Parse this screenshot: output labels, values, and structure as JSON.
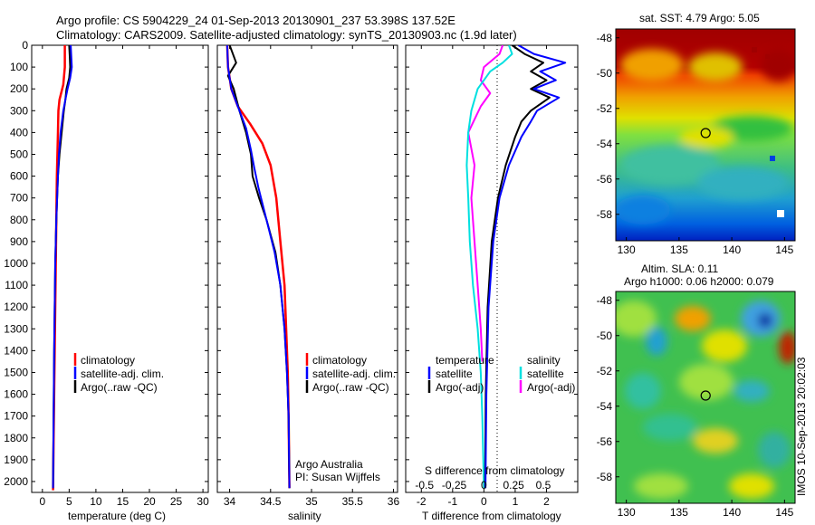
{
  "title_line1": "Argo profile: CS 5904229_24 01-Sep-2013 20130901_237 53.398S 137.52E",
  "title_line2": "Climatology: CARS2009. Satellite-adjusted climatology: synTS_20130903.nc (1.9d later)",
  "side_label": "IMOS 10-Sep-2013 20:02:03",
  "colors": {
    "climatology": "#ff0000",
    "satellite": "#0000ff",
    "argo": "#000000",
    "sat_salinity": "#00e0e0",
    "argo_salinity": "#ff00ff"
  },
  "depth_ticks": [
    "0",
    "100",
    "200",
    "300",
    "400",
    "500",
    "600",
    "700",
    "800",
    "900",
    "1000",
    "1100",
    "1200",
    "1300",
    "1400",
    "1500",
    "1600",
    "1700",
    "1800",
    "1900",
    "2000"
  ],
  "temp_panel": {
    "xlabel": "temperature (deg C)",
    "xticks": [
      "0",
      "5",
      "10",
      "15",
      "20",
      "25",
      "30"
    ],
    "legend": [
      "climatology",
      "satellite-adj. clim.",
      "Argo(..raw -QC)"
    ]
  },
  "sal_panel": {
    "xlabel": "salinity",
    "xticks": [
      "34",
      "34.5",
      "35",
      "35.5",
      "36"
    ],
    "legend": [
      "climatology",
      "satellite-adj. clim.",
      "Argo(..raw -QC)"
    ],
    "note1": "Argo Australia",
    "note2": "PI: Susan Wijffels"
  },
  "diff_panel": {
    "top_xlabel": "S difference from climatology",
    "top_xticks": [
      "-0.5",
      "-0.25",
      "0",
      "0.25",
      "0.5"
    ],
    "xlabel": "T difference from climatology",
    "xticks": [
      "-2",
      "-1",
      "0",
      "1",
      "2"
    ],
    "legend_temp_title": "temperature",
    "legend_sal_title": "salinity",
    "legend_sat": "satellite",
    "legend_argo": "Argo(-adj)"
  },
  "map_sst": {
    "title": "sat. SST: 4.79  Argo: 5.05",
    "xticks": [
      "130",
      "135",
      "140",
      "145"
    ],
    "yticks": [
      "-48",
      "-50",
      "-52",
      "-54",
      "-56",
      "-58"
    ]
  },
  "map_sla": {
    "title1": "Altim. SLA: 0.11",
    "title2": "Argo h1000: 0.06 h2000: 0.079",
    "xticks": [
      "130",
      "135",
      "140",
      "145"
    ],
    "yticks": [
      "-48",
      "-50",
      "-52",
      "-54",
      "-56",
      "-58"
    ]
  },
  "chart_data": [
    {
      "type": "line",
      "title": "Argo profile: CS 5904229_24 01-Sep-2013 20130901_237 53.398S 137.52E",
      "xlabel": "temperature (deg C)",
      "ylabel": "",
      "xlim": [
        -2,
        31
      ],
      "ylim": [
        2050,
        0
      ],
      "series": [
        {
          "name": "climatology",
          "x": [
            4.2,
            4.2,
            3.9,
            3.2,
            3.0,
            2.9,
            2.7,
            2.6,
            2.5,
            2.4,
            2.3,
            2.2,
            2.1,
            2.0
          ],
          "y": [
            0,
            100,
            180,
            250,
            300,
            400,
            600,
            800,
            1000,
            1200,
            1400,
            1600,
            1800,
            2040
          ]
        },
        {
          "name": "satellite-adj. clim.",
          "x": [
            5.3,
            5.4,
            5.5,
            5.2,
            4.7,
            4.3,
            3.9,
            3.4,
            3.1,
            2.9,
            2.6,
            2.4,
            2.3,
            2.2,
            2.1,
            2.0
          ],
          "y": [
            0,
            50,
            100,
            150,
            200,
            250,
            300,
            400,
            500,
            600,
            800,
            1000,
            1200,
            1400,
            1700,
            2030
          ]
        },
        {
          "name": "Argo(..raw -QC)",
          "x": [
            5.0,
            5.1,
            5.2,
            5.0,
            4.5,
            4.3,
            4.0,
            3.6,
            3.2,
            2.9,
            2.6,
            2.4,
            2.3,
            2.2,
            2.1,
            2.0
          ],
          "y": [
            0,
            50,
            100,
            150,
            200,
            250,
            300,
            400,
            500,
            600,
            800,
            1000,
            1200,
            1400,
            1700,
            2030
          ]
        }
      ]
    },
    {
      "type": "line",
      "xlabel": "salinity",
      "xlim": [
        33.85,
        36.05
      ],
      "ylim": [
        2050,
        0
      ],
      "series": [
        {
          "name": "climatology",
          "x": [
            33.97,
            33.98,
            34.02,
            34.1,
            34.25,
            34.4,
            34.5,
            34.57,
            34.62,
            34.67,
            34.69,
            34.71,
            34.72,
            34.73
          ],
          "y": [
            0,
            100,
            200,
            280,
            360,
            450,
            550,
            700,
            900,
            1100,
            1300,
            1500,
            1700,
            2030
          ]
        },
        {
          "name": "satellite-adj. clim.",
          "x": [
            33.97,
            33.98,
            34.02,
            34.1,
            34.2,
            34.26,
            34.3,
            34.35,
            34.45,
            34.55,
            34.62,
            34.67,
            34.7,
            34.72,
            34.73
          ],
          "y": [
            0,
            100,
            200,
            280,
            380,
            480,
            560,
            650,
            800,
            950,
            1100,
            1300,
            1500,
            1700,
            2030
          ]
        },
        {
          "name": "Argo(..raw -QC)",
          "x": [
            34.0,
            34.08,
            33.98,
            34.05,
            34.12,
            34.2,
            34.26,
            34.28,
            34.36,
            34.45,
            34.56,
            34.62,
            34.67,
            34.7,
            34.72,
            34.73
          ],
          "y": [
            0,
            80,
            140,
            200,
            300,
            400,
            500,
            600,
            700,
            800,
            950,
            1100,
            1300,
            1500,
            1700,
            2030
          ]
        }
      ]
    },
    {
      "type": "line",
      "xlabel": "T difference from climatology",
      "xlim": [
        -2.5,
        3.0
      ],
      "ylim": [
        2050,
        0
      ],
      "series": [
        {
          "name": "temperature satellite",
          "x": [
            1.1,
            1.6,
            2.6,
            1.8,
            2.3,
            1.6,
            2.4,
            1.7,
            1.5,
            1.2,
            0.8,
            0.5,
            0.3,
            0.15,
            0.08,
            0.05
          ],
          "y": [
            0,
            40,
            80,
            120,
            160,
            200,
            240,
            300,
            350,
            420,
            550,
            700,
            900,
            1200,
            1600,
            2030
          ]
        },
        {
          "name": "temperature Argo(-adj)",
          "x": [
            0.9,
            1.3,
            1.9,
            1.5,
            2.0,
            1.5,
            2.1,
            1.5,
            1.2,
            1.0,
            0.7,
            0.45,
            0.25,
            0.12,
            0.06,
            0.04
          ],
          "y": [
            0,
            40,
            80,
            120,
            160,
            200,
            240,
            300,
            350,
            420,
            550,
            700,
            900,
            1200,
            1600,
            2030
          ]
        },
        {
          "name": "salinity satellite",
          "x": [
            0.8,
            0.9,
            0.6,
            0.2,
            -0.2,
            -0.4,
            -0.5,
            -0.55,
            -0.5,
            -0.45,
            -0.35,
            -0.2,
            -0.1,
            -0.05,
            0.0
          ],
          "y": [
            0,
            40,
            80,
            120,
            200,
            300,
            400,
            550,
            700,
            900,
            1100,
            1300,
            1500,
            1700,
            2030
          ]
        },
        {
          "name": "salinity Argo(-adj)",
          "x": [
            0.6,
            0.5,
            0.0,
            -0.1,
            0.2,
            -0.1,
            -0.5,
            -0.3,
            -0.4,
            -0.3,
            -0.2,
            -0.1,
            -0.05
          ],
          "y": [
            0,
            40,
            100,
            160,
            220,
            280,
            400,
            550,
            700,
            900,
            1100,
            1300,
            1450
          ]
        }
      ]
    },
    {
      "type": "heatmap",
      "title": "sat. SST: 4.79  Argo: 5.05",
      "xlim": [
        129,
        146
      ],
      "ylim": [
        -59.5,
        -47.5
      ],
      "marker": {
        "lon": 137.52,
        "lat": -53.398
      }
    },
    {
      "type": "heatmap",
      "title": "Altim. SLA: 0.11",
      "subtitle": "Argo h1000: 0.06 h2000: 0.079",
      "xlim": [
        129,
        146
      ],
      "ylim": [
        -59.5,
        -47.5
      ],
      "marker": {
        "lon": 137.52,
        "lat": -53.398
      }
    }
  ]
}
